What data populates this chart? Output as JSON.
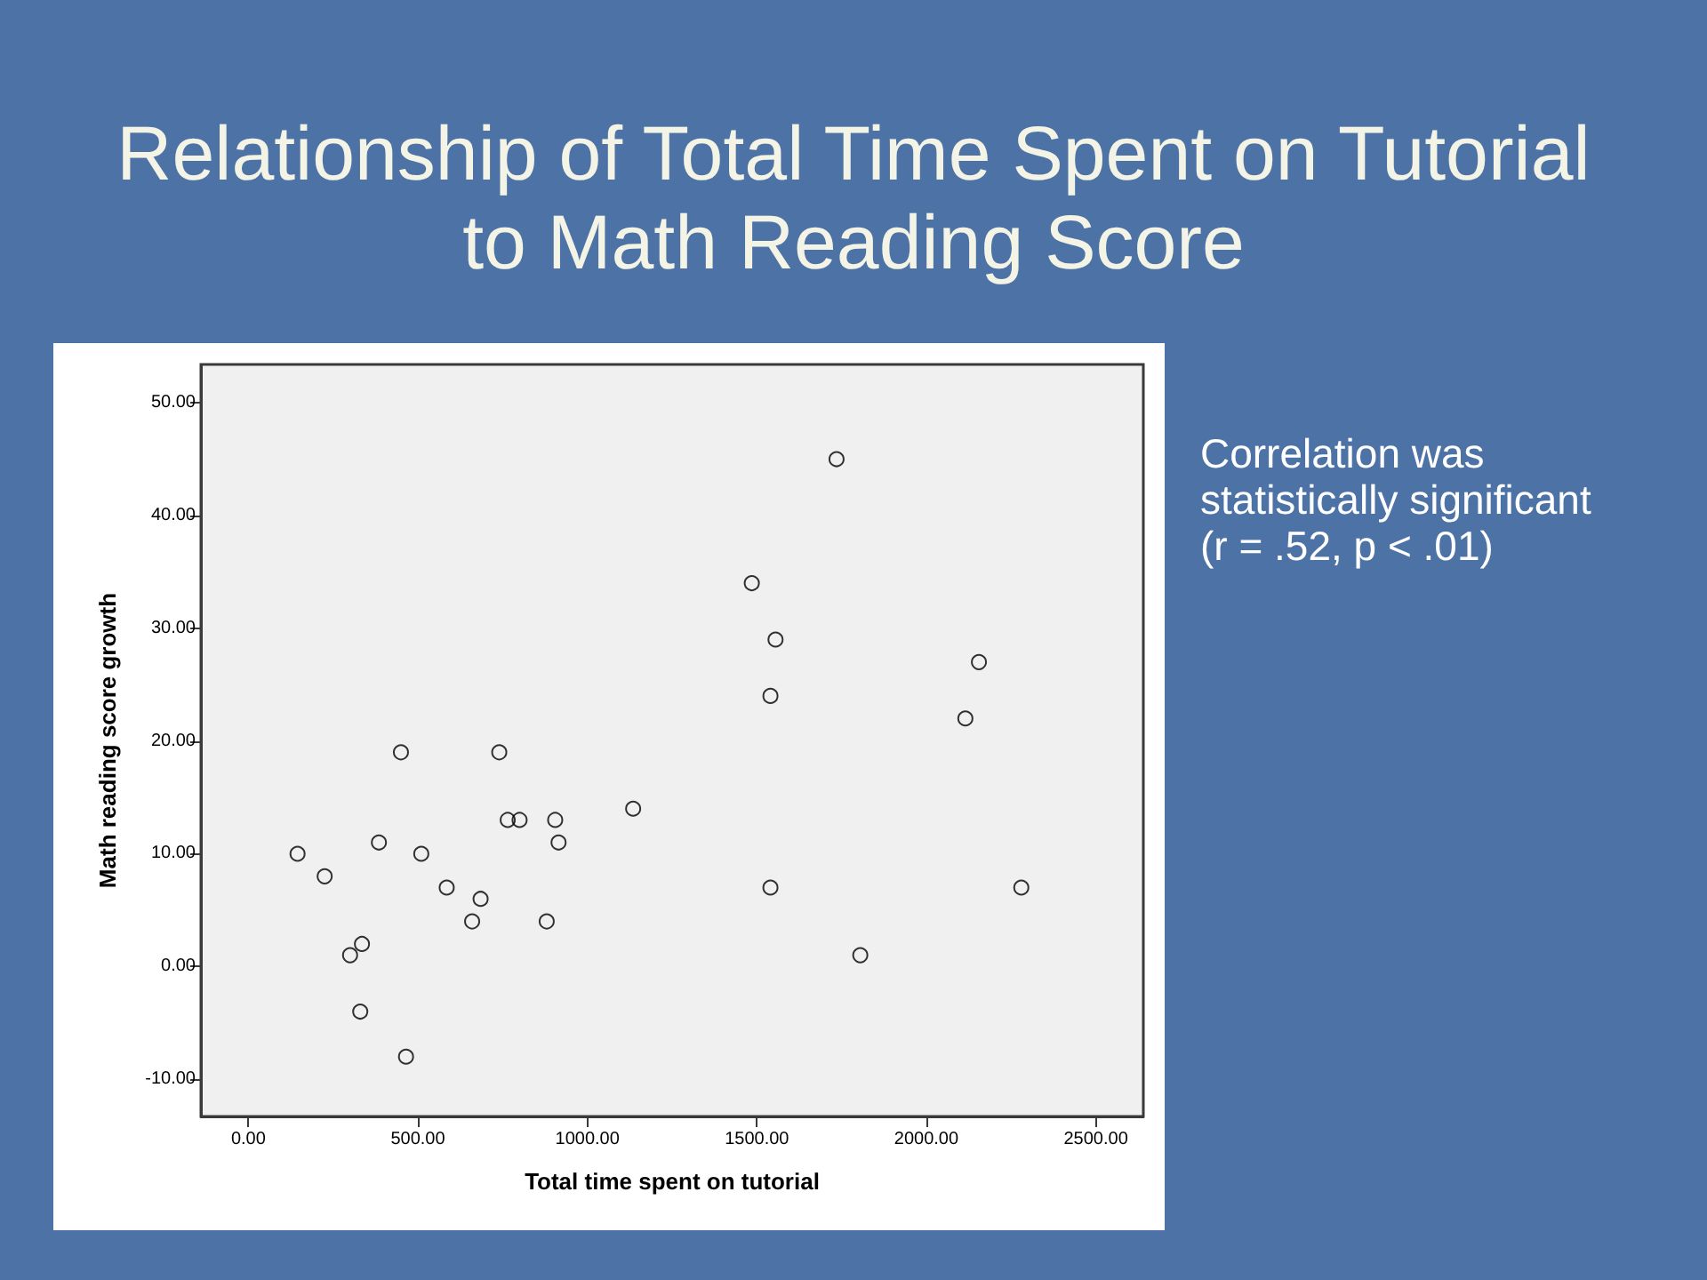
{
  "chart_data": {
    "type": "scatter",
    "title": "Relationship of Total Time Spent on Tutorial to Math Reading Score",
    "xlabel": "Total time spent on tutorial",
    "ylabel": "Math reading score growth",
    "annotations": [
      "Correlation was statistically significant (r = .52, p < .01)"
    ],
    "x": [
      145,
      225,
      300,
      330,
      335,
      385,
      450,
      465,
      510,
      585,
      660,
      685,
      740,
      765,
      800,
      880,
      905,
      915,
      1135,
      1485,
      1540,
      1540,
      1555,
      1735,
      1805,
      2115,
      2155,
      2280
    ],
    "values": [
      10,
      8,
      1,
      -4,
      2,
      11,
      19,
      -8,
      10,
      7,
      4,
      6,
      19,
      13,
      13,
      4,
      13,
      11,
      14,
      34,
      24,
      7,
      29,
      45,
      1,
      22,
      27,
      7
    ],
    "color": "#000000",
    "marker": "circle",
    "xlim": [
      -140,
      2640
    ],
    "ylim": [
      -13.3,
      53.4
    ],
    "xticks": [
      {
        "value": 0,
        "label": "0.00"
      },
      {
        "value": 500,
        "label": "500.00"
      },
      {
        "value": 1000,
        "label": "1000.00"
      },
      {
        "value": 1500,
        "label": "1500.00"
      },
      {
        "value": 2000,
        "label": "2000.00"
      },
      {
        "value": 2500,
        "label": "2500.00"
      }
    ],
    "yticks": [
      {
        "value": -10,
        "label": "-10.00"
      },
      {
        "value": 0,
        "label": "0.00"
      },
      {
        "value": 10,
        "label": "10.00"
      },
      {
        "value": 20,
        "label": "20.00"
      },
      {
        "value": 30,
        "label": "30.00"
      },
      {
        "value": 40,
        "label": "40.00"
      },
      {
        "value": 50,
        "label": "50.00"
      }
    ]
  }
}
